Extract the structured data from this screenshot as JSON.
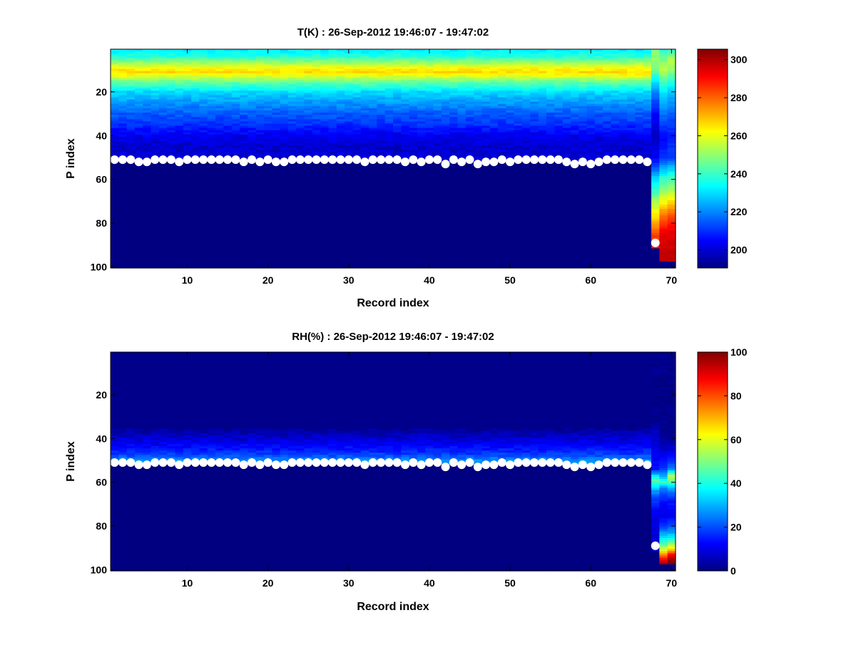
{
  "chart_data": [
    {
      "type": "heatmap",
      "title": "T(K) : 26-Sep-2012 19:46:07 - 19:47:02",
      "xlabel": "Record index",
      "ylabel": "P index",
      "xlim": [
        0.5,
        70.5
      ],
      "ylim": [
        0.5,
        100.5
      ],
      "y_reversed": true,
      "xticks": [
        10,
        20,
        30,
        40,
        50,
        60,
        70
      ],
      "yticks": [
        20,
        40,
        60,
        80,
        100
      ],
      "colormap": "jet",
      "clim": [
        190.5,
        305.5
      ],
      "colorbar_ticks": [
        200,
        220,
        240,
        260,
        280,
        300
      ],
      "below_boundary_value": 190,
      "mean_profile": [
        [
          1,
          232
        ],
        [
          4,
          238
        ],
        [
          7,
          252
        ],
        [
          9,
          262
        ],
        [
          11,
          266
        ],
        [
          13,
          258
        ],
        [
          16,
          244
        ],
        [
          20,
          230
        ],
        [
          25,
          222
        ],
        [
          30,
          215
        ],
        [
          35,
          210
        ],
        [
          40,
          203
        ],
        [
          45,
          199
        ],
        [
          50,
          200
        ],
        [
          55,
          200
        ]
      ],
      "special_columns": {
        "68": {
          "profile": [
            [
              1,
              248
            ],
            [
              6,
              250
            ],
            [
              10,
              245
            ],
            [
              20,
              220
            ],
            [
              30,
              205
            ],
            [
              40,
              198
            ],
            [
              50,
              204
            ],
            [
              55,
              215
            ],
            [
              60,
              230
            ],
            [
              65,
              240
            ],
            [
              70,
              252
            ],
            [
              75,
              262
            ],
            [
              80,
              272
            ],
            [
              85,
              283
            ],
            [
              91,
              290
            ]
          ],
          "last_p": 91
        },
        "69": {
          "profile": [
            [
              1,
              238
            ],
            [
              6,
              248
            ],
            [
              10,
              255
            ],
            [
              20,
              232
            ],
            [
              30,
              218
            ],
            [
              40,
              205
            ],
            [
              50,
              210
            ],
            [
              55,
              225
            ],
            [
              60,
              240
            ],
            [
              65,
              250
            ],
            [
              70,
              262
            ],
            [
              75,
              275
            ],
            [
              80,
              285
            ],
            [
              85,
              294
            ],
            [
              97,
              298
            ]
          ],
          "last_p": 97
        },
        "70": {
          "profile": [
            [
              1,
              240
            ],
            [
              6,
              255
            ],
            [
              10,
              250
            ],
            [
              20,
              228
            ],
            [
              30,
              215
            ],
            [
              40,
              208
            ],
            [
              50,
              212
            ],
            [
              55,
              228
            ],
            [
              60,
              242
            ],
            [
              65,
              252
            ],
            [
              70,
              265
            ],
            [
              75,
              278
            ],
            [
              80,
              288
            ],
            [
              85,
              295
            ],
            [
              97,
              298
            ]
          ],
          "last_p": 97
        }
      },
      "boundary_points": [
        51,
        51,
        51,
        52,
        52,
        51,
        51,
        51,
        52,
        51,
        51,
        51,
        51,
        51,
        51,
        51,
        52,
        51,
        52,
        51,
        52,
        52,
        51,
        51,
        51,
        51,
        51,
        51,
        51,
        51,
        51,
        52,
        51,
        51,
        51,
        51,
        52,
        51,
        52,
        51,
        51,
        53,
        51,
        52,
        51,
        53,
        52,
        52,
        51,
        52,
        51,
        51,
        51,
        51,
        51,
        51,
        52,
        53,
        52,
        53,
        52,
        51,
        51,
        51,
        51,
        51,
        52,
        89
      ],
      "point_color": "#ffffff"
    },
    {
      "type": "heatmap",
      "title": "RH(%) : 26-Sep-2012 19:46:07 - 19:47:02",
      "xlabel": "Record index",
      "ylabel": "P index",
      "xlim": [
        0.5,
        70.5
      ],
      "ylim": [
        0.5,
        100.5
      ],
      "y_reversed": true,
      "xticks": [
        10,
        20,
        30,
        40,
        50,
        60,
        70
      ],
      "yticks": [
        20,
        40,
        60,
        80,
        100
      ],
      "colormap": "jet",
      "clim": [
        0,
        100
      ],
      "colorbar_ticks": [
        0,
        20,
        40,
        60,
        80,
        100
      ],
      "below_boundary_value": 0,
      "mean_profile": [
        [
          1,
          1
        ],
        [
          30,
          1
        ],
        [
          36,
          3
        ],
        [
          40,
          8
        ],
        [
          44,
          13
        ],
        [
          47,
          18
        ],
        [
          50,
          26
        ],
        [
          52,
          30
        ]
      ],
      "special_columns": {
        "68": {
          "profile": [
            [
              1,
              1
            ],
            [
              33,
              1
            ],
            [
              36,
              6
            ],
            [
              45,
              10
            ],
            [
              54,
              14
            ],
            [
              57,
              35
            ],
            [
              59,
              45
            ],
            [
              61,
              40
            ],
            [
              64,
              28
            ],
            [
              68,
              18
            ],
            [
              75,
              10
            ],
            [
              85,
              8
            ],
            [
              91,
              8
            ]
          ],
          "last_p": 91
        },
        "69": {
          "profile": [
            [
              1,
              1
            ],
            [
              38,
              1
            ],
            [
              45,
              8
            ],
            [
              54,
              18
            ],
            [
              57,
              30
            ],
            [
              60,
              42
            ],
            [
              63,
              25
            ],
            [
              68,
              15
            ],
            [
              75,
              10
            ],
            [
              80,
              18
            ],
            [
              84,
              30
            ],
            [
              88,
              45
            ],
            [
              91,
              60
            ],
            [
              93,
              72
            ],
            [
              95,
              85
            ],
            [
              97,
              95
            ]
          ],
          "last_p": 97
        },
        "70": {
          "profile": [
            [
              1,
              1
            ],
            [
              38,
              1
            ],
            [
              45,
              8
            ],
            [
              54,
              25
            ],
            [
              57,
              55
            ],
            [
              60,
              45
            ],
            [
              63,
              28
            ],
            [
              68,
              15
            ],
            [
              75,
              10
            ],
            [
              80,
              20
            ],
            [
              84,
              32
            ],
            [
              88,
              50
            ],
            [
              91,
              70
            ],
            [
              93,
              85
            ],
            [
              95,
              95
            ],
            [
              97,
              100
            ]
          ],
          "last_p": 97
        }
      },
      "boundary_points": [
        51,
        51,
        51,
        52,
        52,
        51,
        51,
        51,
        52,
        51,
        51,
        51,
        51,
        51,
        51,
        51,
        52,
        51,
        52,
        51,
        52,
        52,
        51,
        51,
        51,
        51,
        51,
        51,
        51,
        51,
        51,
        52,
        51,
        51,
        51,
        51,
        52,
        51,
        52,
        51,
        51,
        53,
        51,
        52,
        51,
        53,
        52,
        52,
        51,
        52,
        51,
        51,
        51,
        51,
        51,
        51,
        52,
        53,
        52,
        53,
        52,
        51,
        51,
        51,
        51,
        51,
        52,
        89
      ],
      "point_color": "#ffffff"
    }
  ]
}
